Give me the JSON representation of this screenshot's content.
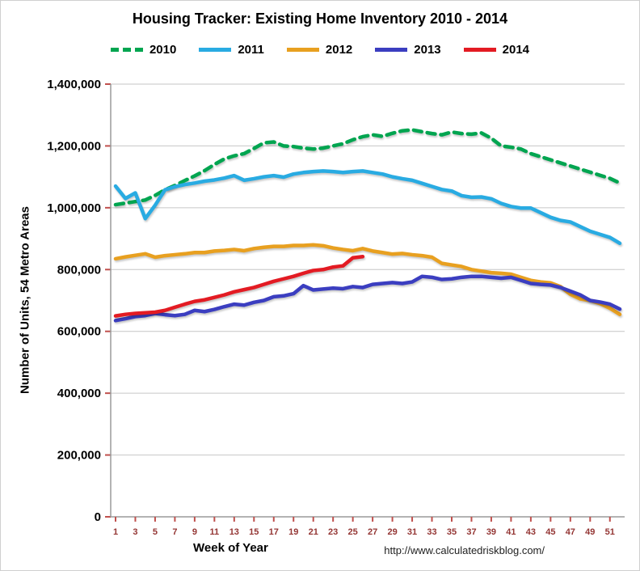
{
  "chart_data": {
    "type": "line",
    "title": "Housing Tracker: Existing Home Inventory 2010 - 2014",
    "xlabel": "Week of Year",
    "ylabel": "Number of Units, 54 Metro Areas",
    "footer_url": "http://www.calculatedriskblog.com/",
    "x_range": [
      1,
      52
    ],
    "xticks": [
      1,
      3,
      5,
      7,
      9,
      11,
      13,
      15,
      17,
      19,
      21,
      23,
      25,
      27,
      29,
      31,
      33,
      35,
      37,
      39,
      41,
      43,
      45,
      47,
      49,
      51
    ],
    "ylim": [
      0,
      1400000
    ],
    "ytick_step": 200000,
    "grid": true,
    "legend_position": "top",
    "grid_color": "#c6c6c6",
    "axis_color": "#9a9a9a",
    "tick_color": "#c0504d",
    "xtick_label_color": "#943634",
    "series": [
      {
        "name": "2010",
        "color": "#00a550",
        "dash": true,
        "values": [
          1010000,
          1015000,
          1020000,
          1025000,
          1040000,
          1058000,
          1072000,
          1088000,
          1103000,
          1120000,
          1140000,
          1158000,
          1168000,
          1175000,
          1192000,
          1210000,
          1213000,
          1200000,
          1198000,
          1193000,
          1190000,
          1193000,
          1200000,
          1207000,
          1220000,
          1230000,
          1236000,
          1231000,
          1241000,
          1249000,
          1252000,
          1246000,
          1240000,
          1236000,
          1245000,
          1240000,
          1238000,
          1242000,
          1225000,
          1200000,
          1196000,
          1190000,
          1175000,
          1165000,
          1155000,
          1145000,
          1135000,
          1125000,
          1115000,
          1105000,
          1095000,
          1080000
        ]
      },
      {
        "name": "2011",
        "color": "#29abe2",
        "dash": false,
        "values": [
          1070000,
          1030000,
          1048000,
          965000,
          1008000,
          1058000,
          1068000,
          1075000,
          1080000,
          1086000,
          1090000,
          1096000,
          1104000,
          1089000,
          1094000,
          1100000,
          1104000,
          1099000,
          1109000,
          1114000,
          1117000,
          1119000,
          1117000,
          1114000,
          1117000,
          1119000,
          1114000,
          1109000,
          1100000,
          1094000,
          1089000,
          1079000,
          1069000,
          1059000,
          1054000,
          1039000,
          1034000,
          1035000,
          1029000,
          1014000,
          1004000,
          999000,
          999000,
          984000,
          969000,
          959000,
          954000,
          939000,
          924000,
          914000,
          904000,
          885000
        ]
      },
      {
        "name": "2012",
        "color": "#e8a020",
        "dash": false,
        "values": [
          835000,
          841000,
          846000,
          851000,
          840000,
          845000,
          848000,
          851000,
          855000,
          855000,
          860000,
          862000,
          865000,
          861000,
          868000,
          872000,
          875000,
          875000,
          878000,
          878000,
          880000,
          877000,
          870000,
          865000,
          861000,
          868000,
          860000,
          855000,
          850000,
          852000,
          848000,
          845000,
          840000,
          820000,
          815000,
          810000,
          800000,
          795000,
          790000,
          788000,
          785000,
          775000,
          765000,
          760000,
          757000,
          745000,
          720000,
          705000,
          700000,
          690000,
          675000,
          655000
        ]
      },
      {
        "name": "2013",
        "color": "#3b3ec0",
        "dash": false,
        "values": [
          635000,
          641000,
          648000,
          651000,
          658000,
          654000,
          651000,
          655000,
          668000,
          664000,
          671000,
          680000,
          688000,
          685000,
          694000,
          700000,
          712000,
          715000,
          722000,
          748000,
          734000,
          737000,
          740000,
          738000,
          745000,
          742000,
          752000,
          755000,
          758000,
          755000,
          760000,
          778000,
          775000,
          768000,
          770000,
          775000,
          778000,
          778000,
          775000,
          772000,
          775000,
          765000,
          755000,
          752000,
          750000,
          742000,
          730000,
          718000,
          700000,
          695000,
          688000,
          672000
        ]
      },
      {
        "name": "2014",
        "color": "#e31b23",
        "dash": false,
        "values": [
          650000,
          655000,
          658000,
          660000,
          662000,
          668000,
          678000,
          688000,
          697000,
          702000,
          710000,
          718000,
          728000,
          735000,
          742000,
          752000,
          762000,
          770000,
          778000,
          788000,
          797000,
          800000,
          808000,
          812000,
          838000,
          842000
        ]
      }
    ]
  }
}
